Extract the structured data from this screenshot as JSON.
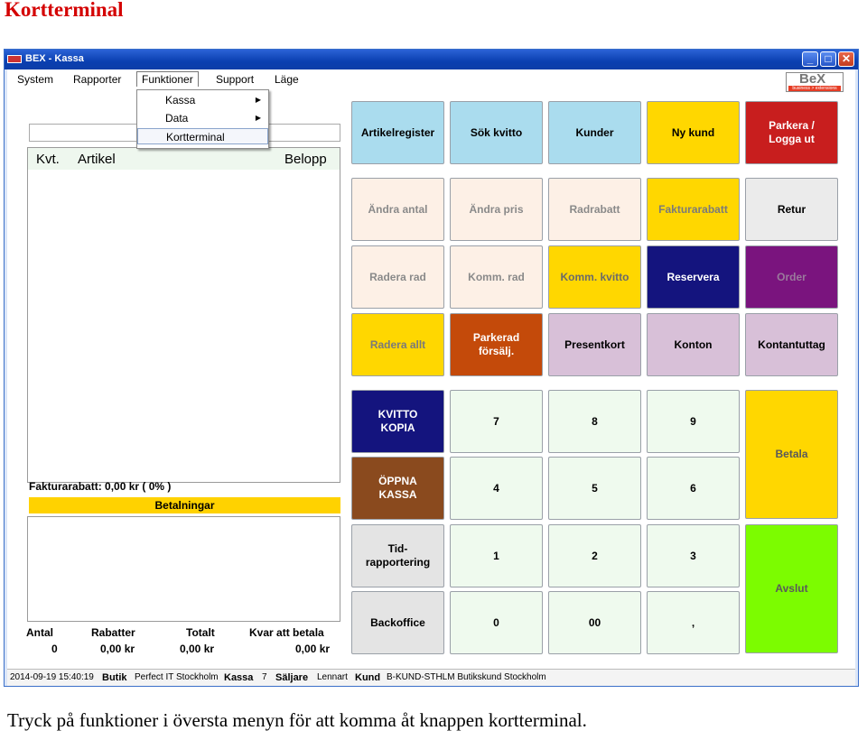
{
  "doc": {
    "heading": "Kortterminal",
    "caption": "Tryck på funktioner i översta menyn för att komma åt knappen kortterminal."
  },
  "window": {
    "title": "BEX - Kassa",
    "controls": {
      "minimize": "_",
      "maximize": "□",
      "close": "✕"
    }
  },
  "menu": {
    "items": [
      "System",
      "Rapporter",
      "Funktioner",
      "Support",
      "Läge"
    ],
    "active": "Funktioner",
    "dropdown": [
      {
        "label": "Kassa",
        "submenu": true
      },
      {
        "label": "Data",
        "submenu": true
      },
      {
        "label": "Kortterminal",
        "submenu": false,
        "highlighted": true
      }
    ],
    "logo": {
      "text": "BeX",
      "tagline": "business > extensions"
    }
  },
  "receipt": {
    "columns": [
      "Kvt.",
      "Artikel",
      "Belopp"
    ],
    "discount_line": "Fakturarabatt:  0,00 kr ( 0% )",
    "payments_label": "Betalningar",
    "totals": {
      "headers": [
        "Antal",
        "Rabatter",
        "Totalt",
        "Kvar att betala"
      ],
      "values": [
        "0",
        "0,00 kr",
        "0,00 kr",
        "0,00 kr"
      ]
    }
  },
  "buttons": [
    {
      "id": "artikelregister",
      "label": "Artikelregister",
      "bg": "#aadcee",
      "fg": "#000000"
    },
    {
      "id": "sok-kvitto",
      "label": "Sök kvitto",
      "bg": "#aadcee",
      "fg": "#000000"
    },
    {
      "id": "kunder",
      "label": "Kunder",
      "bg": "#aadcee",
      "fg": "#000000"
    },
    {
      "id": "ny-kund",
      "label": "Ny kund",
      "bg": "#ffd700",
      "fg": "#000000"
    },
    {
      "id": "parkera-logga-ut",
      "label": "Parkera /\nLogga ut",
      "bg": "#c81e1e",
      "fg": "#ffffff"
    },
    {
      "id": "andra-antal",
      "label": "Ändra antal",
      "bg": "#fdf0e6",
      "fg": "#8a8a8a"
    },
    {
      "id": "andra-pris",
      "label": "Ändra pris",
      "bg": "#fdf0e6",
      "fg": "#8a8a8a"
    },
    {
      "id": "radrabatt",
      "label": "Radrabatt",
      "bg": "#fdf0e6",
      "fg": "#8a8a8a"
    },
    {
      "id": "fakturarabatt",
      "label": "Fakturarabatt",
      "bg": "#ffd700",
      "fg": "#7a7a7a"
    },
    {
      "id": "retur",
      "label": "Retur",
      "bg": "#ebebeb",
      "fg": "#000000"
    },
    {
      "id": "radera-rad",
      "label": "Radera rad",
      "bg": "#fdf0e6",
      "fg": "#8a8a8a"
    },
    {
      "id": "komm-rad",
      "label": "Komm. rad",
      "bg": "#fdf0e6",
      "fg": "#8a8a8a"
    },
    {
      "id": "komm-kvitto",
      "label": "Komm. kvitto",
      "bg": "#ffd700",
      "fg": "#6a6a6a"
    },
    {
      "id": "reservera",
      "label": "Reservera",
      "bg": "#14147e",
      "fg": "#ffffff"
    },
    {
      "id": "order",
      "label": "Order",
      "bg": "#7a147e",
      "fg": "#9a7a9c"
    },
    {
      "id": "radera-allt",
      "label": "Radera allt",
      "bg": "#ffd700",
      "fg": "#7a7a7a"
    },
    {
      "id": "parkerad-forsalj",
      "label": "Parkerad\nförsälj.",
      "bg": "#c44a0a",
      "fg": "#ffffff"
    },
    {
      "id": "presentkort",
      "label": "Presentkort",
      "bg": "#d8c0d8",
      "fg": "#000000"
    },
    {
      "id": "konton",
      "label": "Konton",
      "bg": "#d8c0d8",
      "fg": "#000000"
    },
    {
      "id": "kontantuttag",
      "label": "Kontantuttag",
      "bg": "#d8c0d8",
      "fg": "#000000"
    },
    {
      "id": "kvitto-kopia",
      "label": "KVITTO\nKOPIA",
      "bg": "#14147e",
      "fg": "#ffffff"
    },
    {
      "id": "num-7",
      "label": "7",
      "bg": "#effaee",
      "fg": "#000000"
    },
    {
      "id": "num-8",
      "label": "8",
      "bg": "#effaee",
      "fg": "#000000"
    },
    {
      "id": "num-9",
      "label": "9",
      "bg": "#effaee",
      "fg": "#000000"
    },
    {
      "id": "betala",
      "label": "Betala",
      "bg": "#ffd700",
      "fg": "#5a5a5a"
    },
    {
      "id": "oppna-kassa",
      "label": "ÖPPNA\nKASSA",
      "bg": "#8a4a1e",
      "fg": "#ffffff"
    },
    {
      "id": "num-4",
      "label": "4",
      "bg": "#effaee",
      "fg": "#000000"
    },
    {
      "id": "num-5",
      "label": "5",
      "bg": "#effaee",
      "fg": "#000000"
    },
    {
      "id": "num-6",
      "label": "6",
      "bg": "#effaee",
      "fg": "#000000"
    },
    {
      "id": "tidrapportering",
      "label": "Tid-\nrapportering",
      "bg": "#e4e4e4",
      "fg": "#000000"
    },
    {
      "id": "num-1",
      "label": "1",
      "bg": "#effaee",
      "fg": "#000000"
    },
    {
      "id": "num-2",
      "label": "2",
      "bg": "#effaee",
      "fg": "#000000"
    },
    {
      "id": "num-3",
      "label": "3",
      "bg": "#effaee",
      "fg": "#000000"
    },
    {
      "id": "avslut",
      "label": "Avslut",
      "bg": "#7cfc00",
      "fg": "#5a5a5a"
    },
    {
      "id": "backoffice",
      "label": "Backoffice",
      "bg": "#e4e4e4",
      "fg": "#000000"
    },
    {
      "id": "num-0",
      "label": "0",
      "bg": "#effaee",
      "fg": "#000000"
    },
    {
      "id": "num-00",
      "label": "00",
      "bg": "#effaee",
      "fg": "#000000"
    },
    {
      "id": "num-comma",
      "label": ",",
      "bg": "#effaee",
      "fg": "#000000"
    }
  ],
  "status": {
    "datetime": "2014-09-19 15:40:19",
    "butik_label": "Butik",
    "butik": "Perfect IT Stockholm",
    "kassa_label": "Kassa",
    "kassa": "7",
    "saljare_label": "Säljare",
    "saljare": "Lennart",
    "kund_label": "Kund",
    "kund": "B-KUND-STHLM Butikskund Stockholm"
  }
}
